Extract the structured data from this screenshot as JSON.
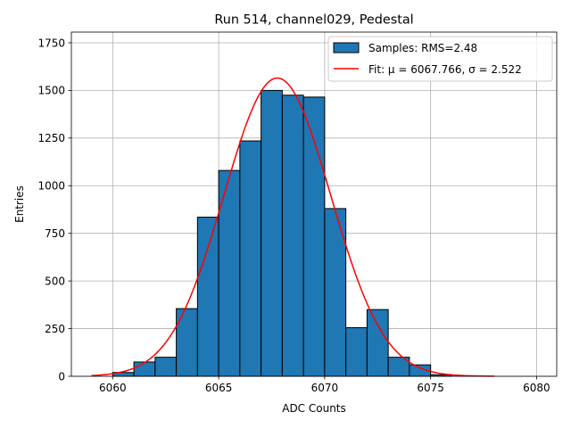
{
  "chart_data": {
    "type": "bar",
    "title": "Run 514, channel029, Pedestal",
    "xlabel": "ADC Counts",
    "ylabel": "Entries",
    "xlim": [
      6058.05,
      6080.95
    ],
    "ylim": [
      0,
      1806
    ],
    "grid": true,
    "legend_position": "top-right",
    "x_ticks": [
      6060,
      6065,
      6070,
      6075,
      6080
    ],
    "y_ticks": [
      0,
      250,
      500,
      750,
      1000,
      1250,
      1500,
      1750
    ],
    "histogram": {
      "bin_width": 1,
      "bins": [
        {
          "left": 6060,
          "count": 20
        },
        {
          "left": 6061,
          "count": 75
        },
        {
          "left": 6062,
          "count": 100
        },
        {
          "left": 6063,
          "count": 355
        },
        {
          "left": 6064,
          "count": 835
        },
        {
          "left": 6065,
          "count": 1080
        },
        {
          "left": 6066,
          "count": 1235
        },
        {
          "left": 6067,
          "count": 1500
        },
        {
          "left": 6068,
          "count": 1475
        },
        {
          "left": 6069,
          "count": 1465
        },
        {
          "left": 6070,
          "count": 880
        },
        {
          "left": 6071,
          "count": 255
        },
        {
          "left": 6072,
          "count": 350
        },
        {
          "left": 6073,
          "count": 100
        },
        {
          "left": 6074,
          "count": 60
        },
        {
          "left": 6075,
          "count": 8
        }
      ],
      "fill_color": "#1f77b4",
      "edge_color": "#000000"
    },
    "fit": {
      "type": "gaussian",
      "mu": 6067.766,
      "sigma": 2.522,
      "peak": 1565,
      "x_range": [
        6059,
        6078
      ],
      "color": "#ff0000"
    },
    "legend": [
      {
        "label": "Samples: RMS=2.48",
        "kind": "patch",
        "color": "#1f77b4"
      },
      {
        "label": "Fit: μ = 6067.766, σ = 2.522",
        "kind": "line",
        "color": "#ff0000"
      }
    ]
  }
}
